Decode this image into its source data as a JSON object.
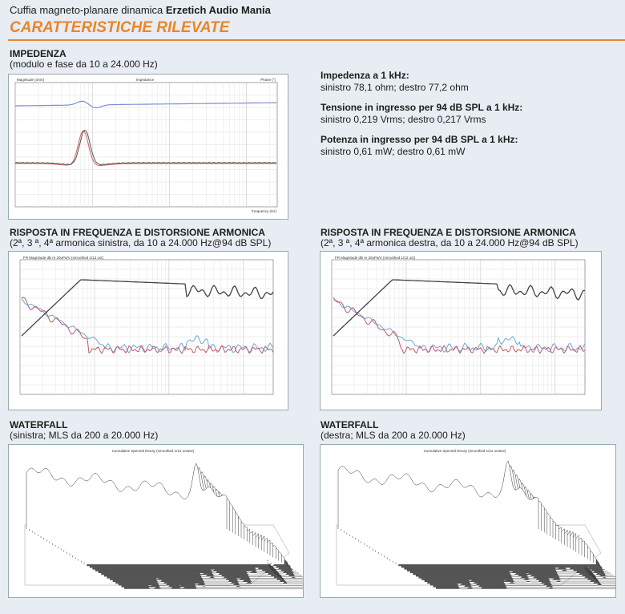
{
  "header": {
    "subtitle_prefix": "Cuffia magneto-planare dinamica",
    "subtitle_brand": "Erzetich Audio Mania",
    "title": "CARATTERISTICHE RILEVATE"
  },
  "impedance": {
    "heading": "IMPEDENZA",
    "caption": "(modulo e fase da 10 a 24.000 Hz)",
    "chart_title": "Impedance",
    "y_label": "Magnitude (ohm)",
    "y2_label": "Phase (°)",
    "x_label": "Frequency (Hz)"
  },
  "measurements": [
    {
      "label": "Impedenza a 1 kHz:",
      "value": "sinistro 78,1 ohm; destro 77,2 ohm"
    },
    {
      "label": "Tensione in ingresso per 94 dB SPL a 1 kHz:",
      "value": "sinistro 0,219 Vrms; destro 0,217 Vrms"
    },
    {
      "label": "Potenza in ingresso per 94 dB SPL a 1 kHz:",
      "value": "sinistro 0,61 mW; destro 0,61 mW"
    }
  ],
  "fr_left": {
    "heading": "RISPOSTA IN FREQUENZA E DISTORSIONE ARMONICA",
    "caption": "(2ª, 3 ª, 4ª armonica sinistra, da 10 a 24.000 Hz@94 dB SPL)",
    "chart_title": "FR Magnitude dB re 20uPa/V (smoothed 1/12 oct)"
  },
  "fr_right": {
    "heading": "RISPOSTA IN FREQUENZA E DISTORSIONE ARMONICA",
    "caption": "(2ª, 3 ª, 4ª armonica destra, da 10 a 24.000 Hz@94 dB SPL)",
    "chart_title": "FR Magnitude dB re 20uPa/V (smoothed 1/12 oct)"
  },
  "waterfall_left": {
    "heading": "WATERFALL",
    "caption": "(sinistra; MLS da 200 a 20.000 Hz)",
    "chart_title": "Cumulative Spectral Decay (smoothed 1/12 octave)"
  },
  "waterfall_right": {
    "heading": "WATERFALL",
    "caption": "(destra; MLS da 200 a 20.000 Hz)",
    "chart_title": "Cumulative Spectral Decay (smoothed 1/12 octave)"
  }
}
